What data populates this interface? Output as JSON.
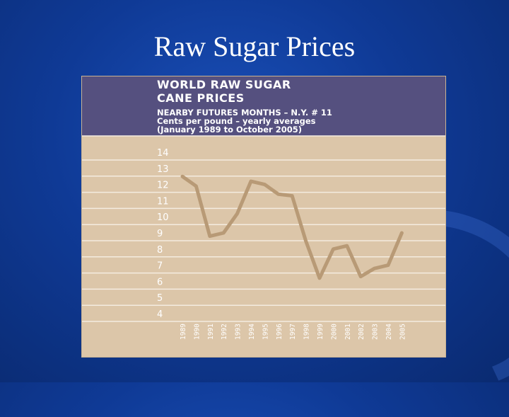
{
  "slide": {
    "title": "Raw Sugar Prices"
  },
  "chart_data": {
    "type": "line",
    "title": "WORLD RAW SUGAR CANE PRICES",
    "title_lines": [
      "WORLD RAW SUGAR",
      "CANE PRICES"
    ],
    "subtitle_lines": [
      "NEARBY FUTURES MONTHS – N.Y. # 11",
      "Cents per pound – yearly averages",
      "(January 1989 to October 2005)"
    ],
    "xlabel": "",
    "ylabel": "",
    "x": [
      "1989",
      "1990",
      "1991",
      "1992",
      "1993",
      "1994",
      "1995",
      "1996",
      "1997",
      "1998",
      "1999",
      "2000",
      "2001",
      "2002",
      "2003",
      "2004",
      "2005"
    ],
    "series": [
      {
        "values": [
          12.5,
          11.9,
          8.8,
          9.0,
          10.2,
          12.2,
          12.0,
          11.4,
          11.3,
          8.5,
          6.2,
          8.0,
          8.2,
          6.3,
          6.8,
          7.0,
          9.0
        ]
      }
    ],
    "y_ticks": [
      4,
      5,
      6,
      7,
      8,
      9,
      10,
      11,
      12,
      13,
      14
    ],
    "ylim": [
      4,
      14
    ],
    "line_color": "#b89a76",
    "background_color": "#dcc6a9",
    "header_color": "#55507f"
  }
}
